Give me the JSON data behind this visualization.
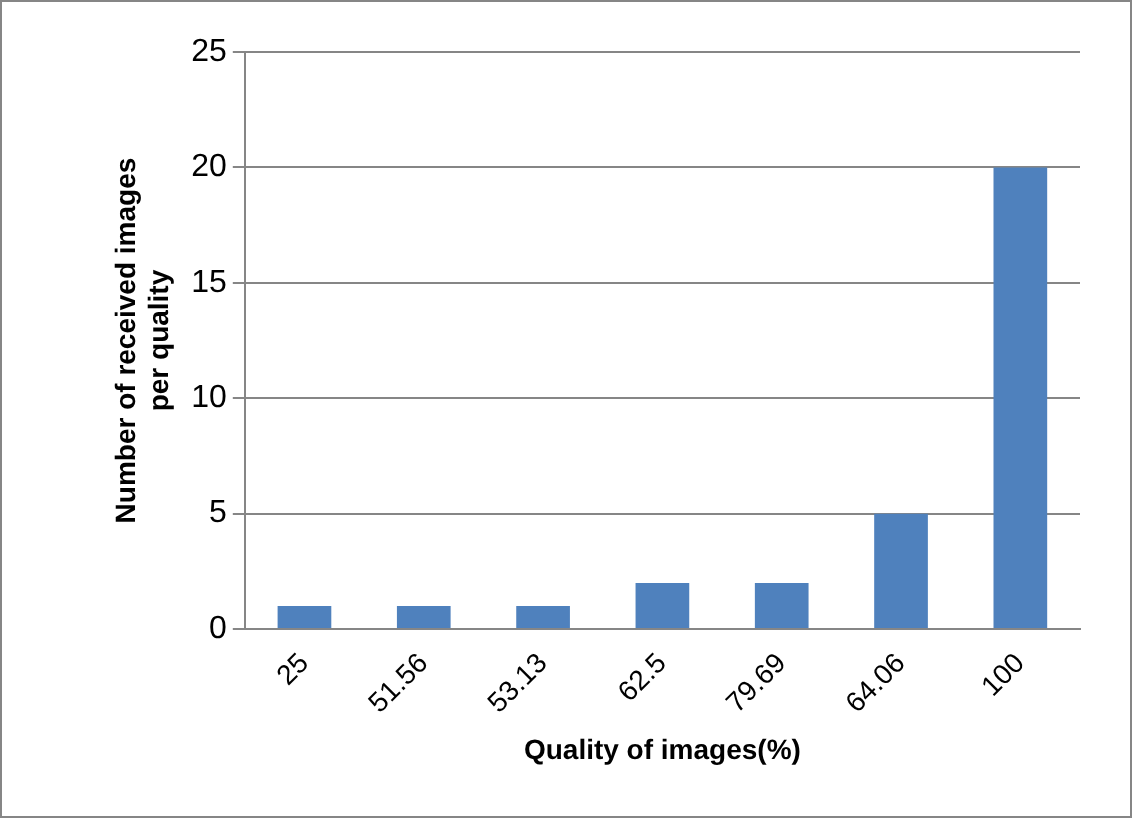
{
  "chart_data": {
    "type": "bar",
    "xlabel": "Quality of images(%)",
    "ylabel": "Number of received images\nper quality",
    "categories": [
      "25",
      "51.56",
      "53.13",
      "62.5",
      "79.69",
      "64.06",
      "100"
    ],
    "values": [
      1,
      1,
      1,
      2,
      2,
      5,
      20
    ],
    "color": "#4f81bd",
    "ylim": [
      0,
      25
    ],
    "yticks": [
      0,
      5,
      10,
      15,
      20,
      25
    ],
    "grid": "y",
    "legend": false
  }
}
